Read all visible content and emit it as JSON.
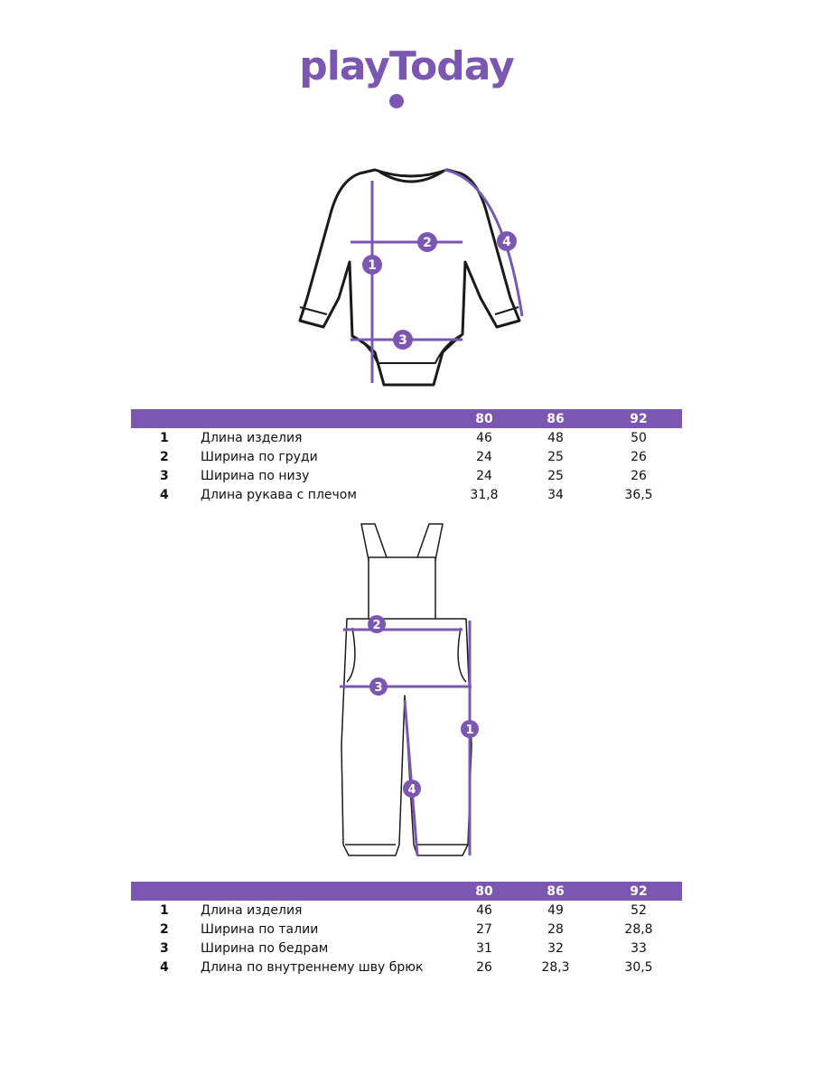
{
  "brand": {
    "logo_text": "playToday",
    "color": "#7b57b3"
  },
  "tables": [
    {
      "sizes": [
        "80",
        "86",
        "92"
      ],
      "rows": [
        {
          "num": "1",
          "label": "Длина изделия",
          "values": [
            "46",
            "48",
            "50"
          ]
        },
        {
          "num": "2",
          "label": "Ширина по груди",
          "values": [
            "24",
            "25",
            "26"
          ]
        },
        {
          "num": "3",
          "label": "Ширина по низу",
          "values": [
            "24",
            "25",
            "26"
          ]
        },
        {
          "num": "4",
          "label": "Длина рукава с плечом",
          "values": [
            "31,8",
            "34",
            "36,5"
          ]
        }
      ]
    },
    {
      "sizes": [
        "80",
        "86",
        "92"
      ],
      "rows": [
        {
          "num": "1",
          "label": "Длина изделия",
          "values": [
            "46",
            "49",
            "52"
          ]
        },
        {
          "num": "2",
          "label": "Ширина по талии",
          "values": [
            "27",
            "28",
            "28,8"
          ]
        },
        {
          "num": "3",
          "label": "Ширина по бедрам",
          "values": [
            "31",
            "32",
            "33"
          ]
        },
        {
          "num": "4",
          "label": "Длина по внутреннему шву брюк",
          "values": [
            "26",
            "28,3",
            "30,5"
          ]
        }
      ]
    }
  ],
  "markers": [
    "1",
    "2",
    "3",
    "4"
  ]
}
